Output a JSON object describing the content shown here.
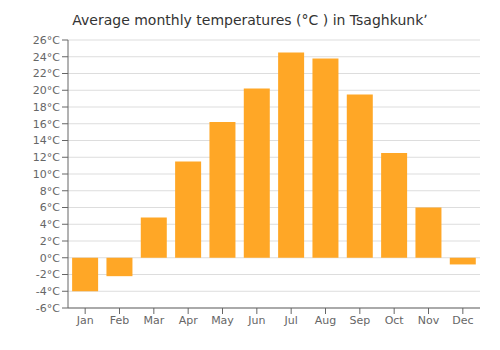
{
  "chart_data": {
    "type": "bar",
    "title": "Average monthly temperatures (°C ) in Tsaghkunkʼ",
    "categories": [
      "Jan",
      "Feb",
      "Mar",
      "Apr",
      "May",
      "Jun",
      "Jul",
      "Aug",
      "Sep",
      "Oct",
      "Nov",
      "Dec"
    ],
    "values": [
      -4.0,
      -2.2,
      4.8,
      11.5,
      16.2,
      20.2,
      24.5,
      23.8,
      19.5,
      12.5,
      6.0,
      -0.8
    ],
    "color": "#FFA726",
    "ylim": [
      -6,
      26
    ],
    "yticks": [
      {
        "value": -6,
        "label": "-6°C"
      },
      {
        "value": -4,
        "label": "-4°C"
      },
      {
        "value": -2,
        "label": "-2°C"
      },
      {
        "value": 0,
        "label": "0°C"
      },
      {
        "value": 2,
        "label": "2°C"
      },
      {
        "value": 4,
        "label": "4°C"
      },
      {
        "value": 6,
        "label": "6°C"
      },
      {
        "value": 8,
        "label": "8°C"
      },
      {
        "value": 10,
        "label": "10°C"
      },
      {
        "value": 12,
        "label": "12°C"
      },
      {
        "value": 14,
        "label": "14°C"
      },
      {
        "value": 16,
        "label": "16°C"
      },
      {
        "value": 18,
        "label": "18°C"
      },
      {
        "value": 20,
        "label": "20°C"
      },
      {
        "value": 22,
        "label": "22°C"
      },
      {
        "value": 24,
        "label": "24°C"
      },
      {
        "value": 26,
        "label": "26°C"
      }
    ],
    "grid": true
  }
}
